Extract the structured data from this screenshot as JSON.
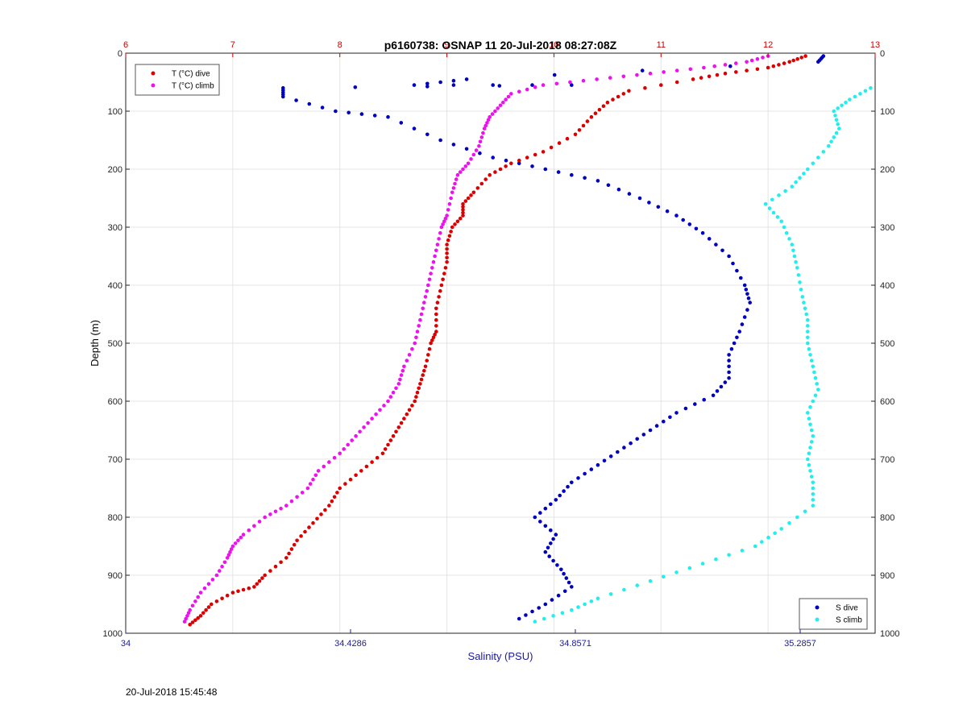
{
  "footer": {
    "timestamp": "20-Jul-2018 15:45:48"
  },
  "colors": {
    "t_dive": "#dd0000",
    "t_climb": "#ee11ee",
    "s_dive": "#0000c0",
    "s_climb": "#22eeee",
    "top_axis": "#cc0000",
    "bottom_axis": "#1a1aa0"
  },
  "chart_data": {
    "type": "scatter",
    "title": "p6160738: OSNAP 11 20-Jul-2018 08:27:08Z",
    "ylabel": "Depth (m)",
    "xlabel": "Salinity (PSU)",
    "y_reversed": true,
    "ylim": [
      0,
      1000
    ],
    "yticks": [
      "0",
      "100",
      "200",
      "300",
      "400",
      "500",
      "600",
      "700",
      "800",
      "900",
      "1000"
    ],
    "x_top": {
      "quantity": "Temperature",
      "lim": [
        6,
        13
      ],
      "ticks": [
        "6",
        "7",
        "8",
        "9",
        "10",
        "11",
        "12",
        "13"
      ]
    },
    "x_bottom": {
      "quantity": "Salinity",
      "lim": [
        34,
        35.4286
      ],
      "ticks": [
        "34",
        "34.4286",
        "34.8571",
        "35.2857"
      ]
    },
    "grid": true,
    "legend_top": {
      "position": "top-left",
      "entries": [
        "T (°C) dive",
        "T (°C) climb"
      ]
    },
    "legend_bottom": {
      "position": "bottom-right",
      "entries": [
        "S dive",
        "S climb"
      ]
    },
    "series": [
      {
        "name": "T (°C) dive",
        "axis": "top",
        "points": [
          [
            12.35,
            5
          ],
          [
            12.2,
            15
          ],
          [
            12.0,
            25
          ],
          [
            11.6,
            35
          ],
          [
            11.3,
            45
          ],
          [
            10.7,
            65
          ],
          [
            10.5,
            85
          ],
          [
            10.35,
            110
          ],
          [
            10.2,
            140
          ],
          [
            9.9,
            170
          ],
          [
            9.6,
            190
          ],
          [
            9.4,
            210
          ],
          [
            9.25,
            240
          ],
          [
            9.15,
            260
          ],
          [
            9.15,
            280
          ],
          [
            9.05,
            300
          ],
          [
            9.0,
            330
          ],
          [
            9.0,
            360
          ],
          [
            8.95,
            400
          ],
          [
            8.9,
            440
          ],
          [
            8.9,
            480
          ],
          [
            8.85,
            500
          ],
          [
            8.8,
            540
          ],
          [
            8.75,
            570
          ],
          [
            8.7,
            600
          ],
          [
            8.6,
            630
          ],
          [
            8.5,
            660
          ],
          [
            8.4,
            690
          ],
          [
            8.2,
            720
          ],
          [
            8.0,
            750
          ],
          [
            7.9,
            780
          ],
          [
            7.75,
            810
          ],
          [
            7.6,
            840
          ],
          [
            7.5,
            870
          ],
          [
            7.3,
            900
          ],
          [
            7.2,
            920
          ],
          [
            7.0,
            930
          ],
          [
            6.8,
            950
          ],
          [
            6.7,
            970
          ],
          [
            6.6,
            985
          ]
        ]
      },
      {
        "name": "T (°C) climb",
        "axis": "top",
        "points": [
          [
            12.0,
            5
          ],
          [
            11.8,
            15
          ],
          [
            11.4,
            25
          ],
          [
            10.9,
            35
          ],
          [
            10.4,
            45
          ],
          [
            9.9,
            55
          ],
          [
            9.6,
            70
          ],
          [
            9.5,
            90
          ],
          [
            9.4,
            110
          ],
          [
            9.35,
            130
          ],
          [
            9.3,
            160
          ],
          [
            9.2,
            190
          ],
          [
            9.1,
            210
          ],
          [
            9.05,
            240
          ],
          [
            9.0,
            280
          ],
          [
            8.95,
            300
          ],
          [
            8.9,
            340
          ],
          [
            8.85,
            380
          ],
          [
            8.8,
            420
          ],
          [
            8.75,
            460
          ],
          [
            8.7,
            500
          ],
          [
            8.6,
            540
          ],
          [
            8.55,
            570
          ],
          [
            8.45,
            600
          ],
          [
            8.3,
            630
          ],
          [
            8.15,
            660
          ],
          [
            8.0,
            690
          ],
          [
            7.8,
            720
          ],
          [
            7.7,
            750
          ],
          [
            7.5,
            780
          ],
          [
            7.3,
            800
          ],
          [
            7.1,
            830
          ],
          [
            7.0,
            850
          ],
          [
            6.95,
            870
          ],
          [
            6.85,
            900
          ],
          [
            6.7,
            930
          ],
          [
            6.6,
            960
          ],
          [
            6.55,
            980
          ]
        ]
      },
      {
        "name": "S dive",
        "axis": "bottom",
        "points": [
          [
            35.33,
            5
          ],
          [
            35.32,
            15
          ],
          [
            34.65,
            45
          ],
          [
            34.55,
            55
          ],
          [
            34.85,
            55
          ],
          [
            34.3,
            60
          ],
          [
            34.3,
            75
          ],
          [
            34.4,
            100
          ],
          [
            34.5,
            110
          ],
          [
            34.6,
            150
          ],
          [
            34.7,
            180
          ],
          [
            34.8,
            200
          ],
          [
            34.9,
            220
          ],
          [
            34.98,
            250
          ],
          [
            35.05,
            280
          ],
          [
            35.1,
            310
          ],
          [
            35.15,
            350
          ],
          [
            35.18,
            400
          ],
          [
            35.19,
            430
          ],
          [
            35.17,
            480
          ],
          [
            35.15,
            520
          ],
          [
            35.15,
            560
          ],
          [
            35.12,
            590
          ],
          [
            35.05,
            620
          ],
          [
            35.0,
            650
          ],
          [
            34.95,
            680
          ],
          [
            34.9,
            710
          ],
          [
            34.85,
            740
          ],
          [
            34.82,
            770
          ],
          [
            34.78,
            800
          ],
          [
            34.82,
            830
          ],
          [
            34.8,
            860
          ],
          [
            34.83,
            890
          ],
          [
            34.85,
            920
          ],
          [
            34.8,
            950
          ],
          [
            34.75,
            975
          ]
        ]
      },
      {
        "name": "S climb",
        "axis": "bottom",
        "points": [
          [
            35.42,
            60
          ],
          [
            35.38,
            80
          ],
          [
            35.35,
            100
          ],
          [
            35.36,
            130
          ],
          [
            35.34,
            160
          ],
          [
            35.3,
            200
          ],
          [
            35.27,
            230
          ],
          [
            35.22,
            260
          ],
          [
            35.25,
            290
          ],
          [
            35.27,
            330
          ],
          [
            35.28,
            370
          ],
          [
            35.29,
            420
          ],
          [
            35.3,
            460
          ],
          [
            35.3,
            500
          ],
          [
            35.31,
            540
          ],
          [
            35.32,
            580
          ],
          [
            35.3,
            620
          ],
          [
            35.31,
            660
          ],
          [
            35.3,
            700
          ],
          [
            35.31,
            740
          ],
          [
            35.31,
            780
          ],
          [
            35.25,
            820
          ],
          [
            35.2,
            850
          ],
          [
            35.1,
            880
          ],
          [
            35.0,
            910
          ],
          [
            34.9,
            940
          ],
          [
            34.85,
            960
          ],
          [
            34.78,
            980
          ]
        ]
      }
    ]
  }
}
